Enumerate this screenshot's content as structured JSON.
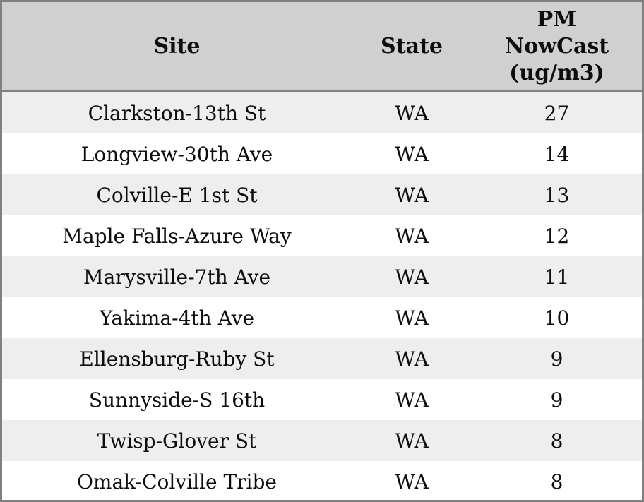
{
  "chart_data": {
    "type": "table",
    "columns": [
      "Site",
      "State",
      "PM NowCast (ug/m3)"
    ],
    "rows": [
      [
        "Clarkston-13th St",
        "WA",
        27
      ],
      [
        "Longview-30th Ave",
        "WA",
        14
      ],
      [
        "Colville-E 1st St",
        "WA",
        13
      ],
      [
        "Maple Falls-Azure Way",
        "WA",
        12
      ],
      [
        "Marysville-7th Ave",
        "WA",
        11
      ],
      [
        "Yakima-4th Ave",
        "WA",
        10
      ],
      [
        "Ellensburg-Ruby St",
        "WA",
        9
      ],
      [
        "Sunnyside-S 16th",
        "WA",
        9
      ],
      [
        "Twisp-Glover St",
        "WA",
        8
      ],
      [
        "Omak-Colville Tribe",
        "WA",
        8
      ]
    ]
  },
  "header_display": {
    "site": "Site",
    "state": "State",
    "pm_nowcast": "PM\nNowCast\n(ug/m3)"
  },
  "colors": {
    "header_bg": "#d0d0d0",
    "row_alt_bg": "#eeeeee",
    "row_bg": "#ffffff",
    "border": "#808080",
    "text": "#0d0d0d"
  }
}
